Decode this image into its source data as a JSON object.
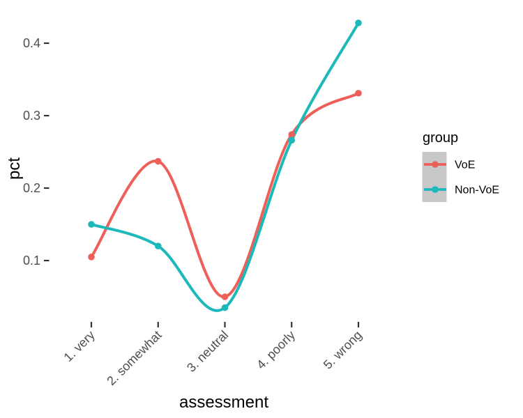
{
  "figure": {
    "background": "#FFFFFF"
  },
  "chart_data": {
    "type": "line",
    "title": "",
    "xlabel": "assessment",
    "ylabel": "pct",
    "categories": [
      "1. very",
      "2. somewhat",
      "3. neutral",
      "4. poorly",
      "5. wrong"
    ],
    "series": [
      {
        "name": "VoE",
        "color": "#EF5F59",
        "values": [
          0.105,
          0.237,
          0.05,
          0.274,
          0.331
        ]
      },
      {
        "name": "Non-VoE",
        "color": "#1CB8BA",
        "values": [
          0.15,
          0.12,
          0.035,
          0.266,
          0.428
        ]
      }
    ],
    "y_tick_labels": [
      "0.1",
      "0.2",
      "0.3",
      "0.4"
    ],
    "y_tick_values": [
      0.1,
      0.2,
      0.3,
      0.4
    ],
    "ylim": [
      0.02,
      0.445
    ],
    "grid": false,
    "panel_background": "none",
    "smoothing": "spline",
    "markers": true,
    "line_width": 4,
    "point_radius": 4.8,
    "x_label_rotation_deg": 45,
    "legend": {
      "title": "group",
      "position": "right",
      "key_fill": "#C8C8C8",
      "entries": [
        "VoE",
        "Non-VoE"
      ]
    },
    "axis": {
      "tick_color": "#333333",
      "tick_label_color": "#4D4D4D",
      "title_color": "#000000"
    }
  }
}
